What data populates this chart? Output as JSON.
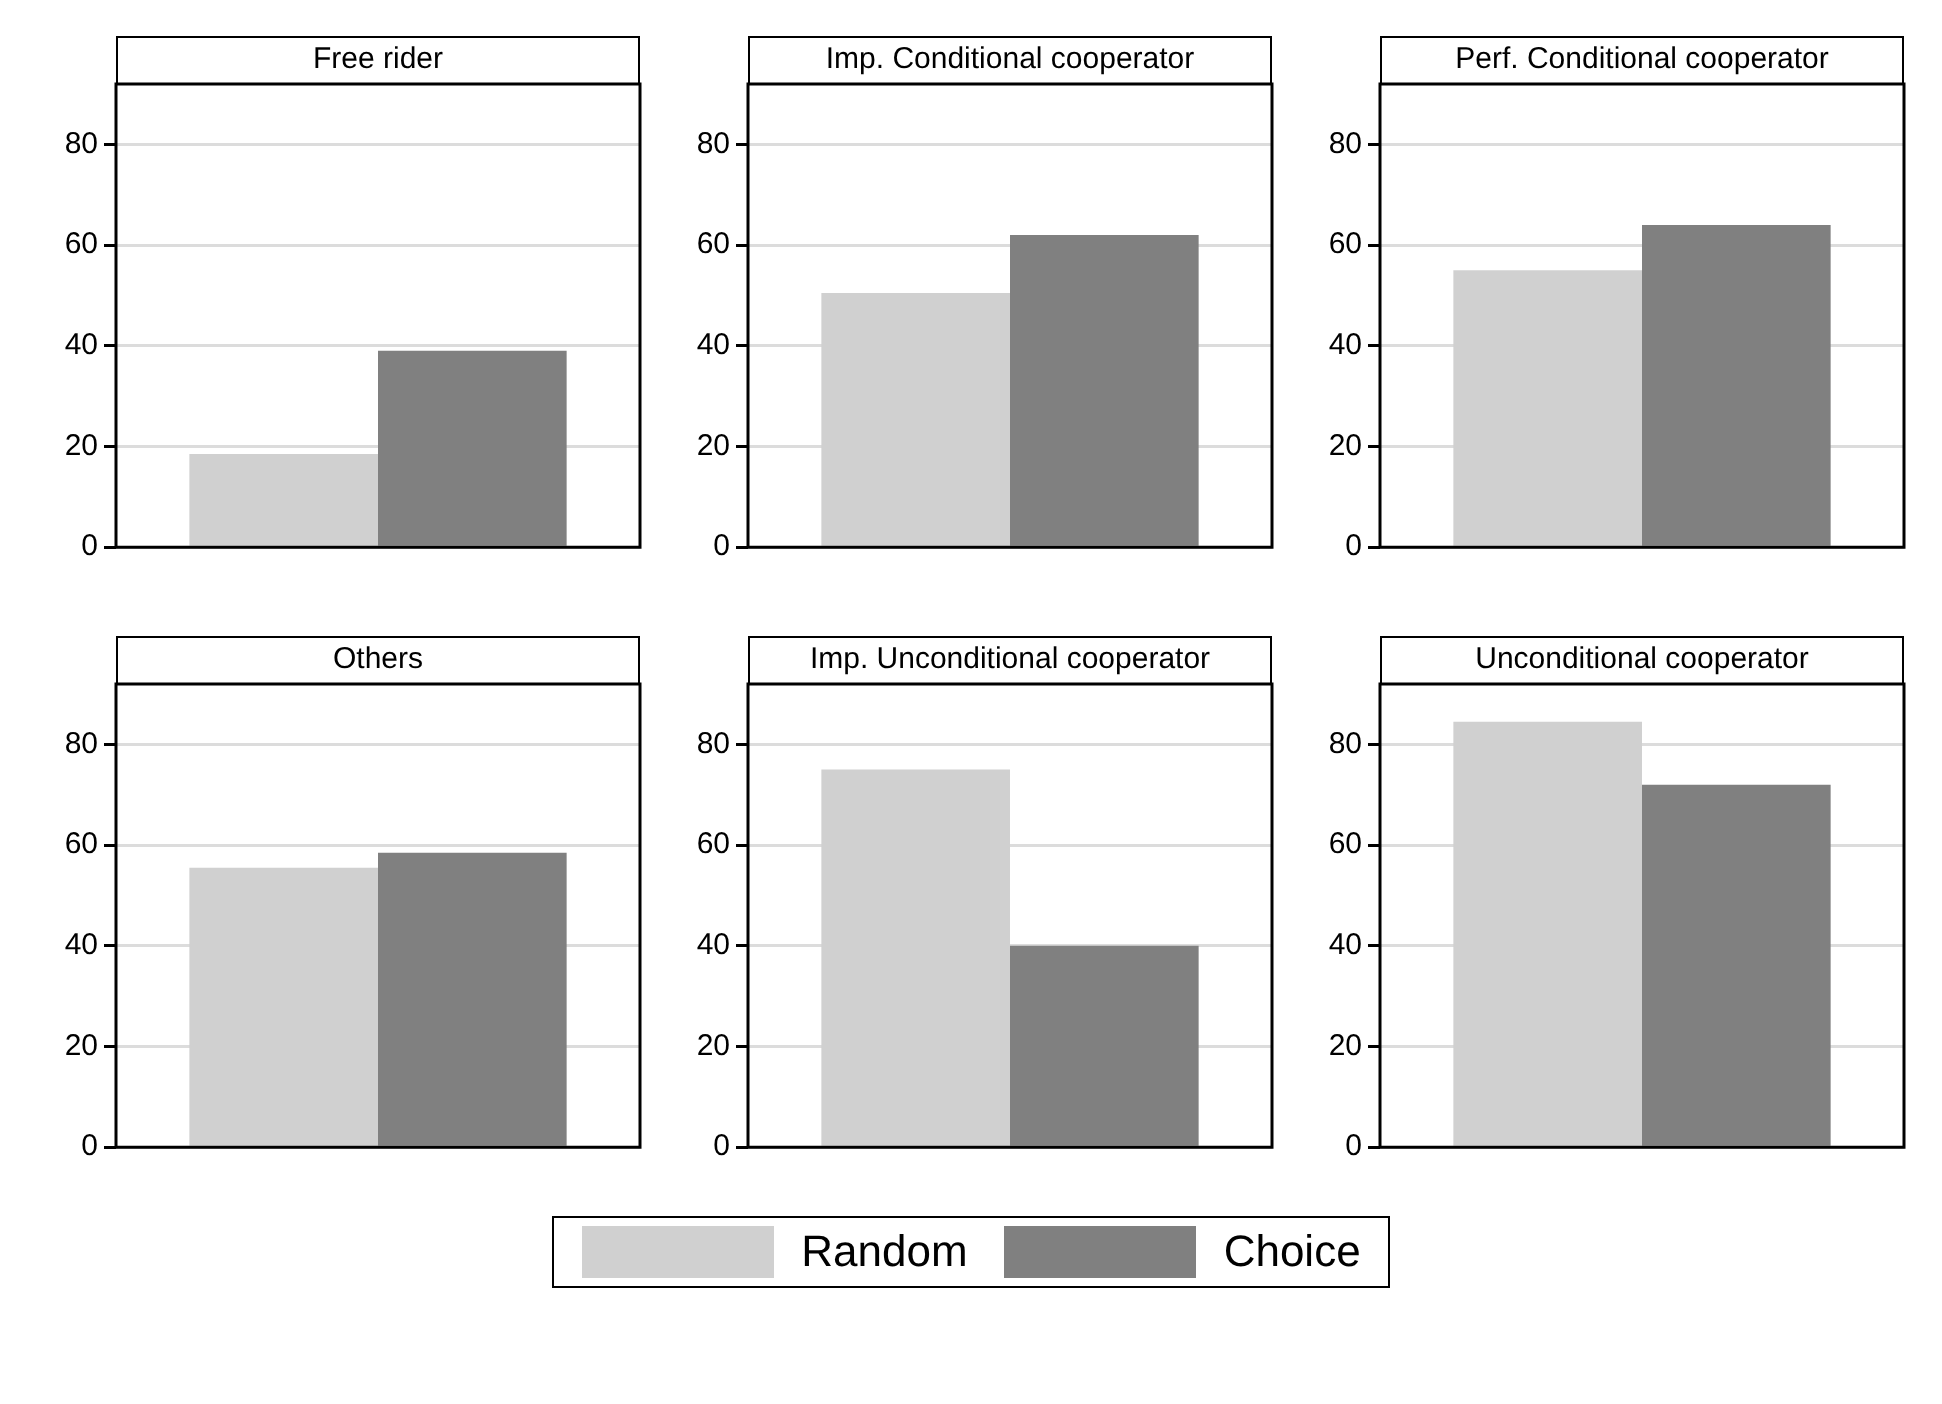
{
  "chart_data": [
    {
      "type": "bar",
      "title": "Free rider",
      "categories": [
        null
      ],
      "series": [
        {
          "name": "Random",
          "color": "#d0d0d0",
          "values": [
            18.5
          ]
        },
        {
          "name": "Choice",
          "color": "#808080",
          "values": [
            39
          ]
        }
      ],
      "ylim": [
        0,
        92
      ],
      "yticks": [
        0,
        20,
        40,
        60,
        80
      ],
      "grid": "y",
      "legend": "bottom"
    },
    {
      "type": "bar",
      "title": "Imp. Conditional cooperator",
      "categories": [
        null
      ],
      "series": [
        {
          "color": "#d0d0d0",
          "values": [
            50.5
          ]
        },
        {
          "color": "#808080",
          "values": [
            62
          ]
        }
      ],
      "ylim": [
        0,
        92
      ],
      "yticks": [
        0,
        20,
        40,
        60,
        80
      ],
      "grid": "y"
    },
    {
      "type": "bar",
      "title": "Perf. Conditional cooperator",
      "categories": [
        null
      ],
      "series": [
        {
          "color": "#d0d0d0",
          "values": [
            55
          ]
        },
        {
          "color": "#808080",
          "values": [
            64
          ]
        }
      ],
      "ylim": [
        0,
        92
      ],
      "yticks": [
        0,
        20,
        40,
        60,
        80
      ],
      "grid": "y"
    },
    {
      "type": "bar",
      "title": "Others",
      "categories": [
        null
      ],
      "series": [
        {
          "color": "#d0d0d0",
          "values": [
            55.5
          ]
        },
        {
          "color": "#808080",
          "values": [
            58.5
          ]
        }
      ],
      "ylim": [
        0,
        92
      ],
      "yticks": [
        0,
        20,
        40,
        60,
        80
      ],
      "grid": "y"
    },
    {
      "type": "bar",
      "title": "Imp. Unconditional cooperator",
      "categories": [
        null
      ],
      "series": [
        {
          "color": "#d0d0d0",
          "values": [
            75
          ]
        },
        {
          "color": "#808080",
          "values": [
            40
          ]
        }
      ],
      "ylim": [
        0,
        92
      ],
      "yticks": [
        0,
        20,
        40,
        60,
        80
      ],
      "grid": "y"
    },
    {
      "type": "bar",
      "title": "Unconditional cooperator",
      "categories": [
        null
      ],
      "series": [
        {
          "color": "#d0d0d0",
          "values": [
            84.5
          ]
        },
        {
          "color": "#808080",
          "values": [
            72
          ]
        }
      ],
      "ylim": [
        0,
        92
      ],
      "yticks": [
        0,
        20,
        40,
        60,
        80
      ],
      "grid": "y"
    }
  ]
}
